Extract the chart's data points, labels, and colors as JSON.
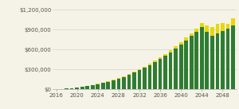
{
  "years": [
    2016,
    2017,
    2018,
    2019,
    2020,
    2021,
    2022,
    2023,
    2024,
    2025,
    2026,
    2027,
    2028,
    2029,
    2030,
    2031,
    2032,
    2033,
    2034,
    2035,
    2036,
    2037,
    2038,
    2039,
    2040,
    2041,
    2042,
    2043,
    2044,
    2045,
    2046,
    2047,
    2048,
    2049,
    2050
  ],
  "green_values": [
    2000,
    6000,
    11000,
    18000,
    27000,
    37000,
    49000,
    62000,
    78000,
    96000,
    116000,
    138000,
    163000,
    190000,
    220000,
    252000,
    287000,
    325000,
    366000,
    410000,
    457000,
    507000,
    560000,
    617000,
    676000,
    738000,
    804000,
    872000,
    944000,
    870000,
    810000,
    845000,
    875000,
    920000,
    960000
  ],
  "yellow_values": [
    200,
    400,
    700,
    1000,
    1500,
    2000,
    2800,
    3500,
    4500,
    5500,
    6500,
    8000,
    9500,
    11000,
    13000,
    15000,
    17000,
    19500,
    22000,
    24500,
    27000,
    30000,
    33000,
    36000,
    39000,
    42000,
    46000,
    50000,
    60000,
    100000,
    130000,
    140000,
    130000,
    70000,
    110000
  ],
  "bar_color_green": "#2e7d32",
  "bar_color_yellow": "#e6d800",
  "background_color": "#f5f2e7",
  "grid_color": "#d8d5c5",
  "yticks": [
    0,
    300000,
    600000,
    900000,
    1200000
  ],
  "ytick_labels": [
    "$0",
    "$300,000",
    "$600,000",
    "$900,000",
    "$1,200,000"
  ],
  "xtick_years": [
    2016,
    2020,
    2024,
    2028,
    2032,
    2036,
    2040,
    2044,
    2048
  ],
  "ylim": [
    0,
    1300000
  ],
  "xlim": [
    2015.3,
    2050.7
  ]
}
